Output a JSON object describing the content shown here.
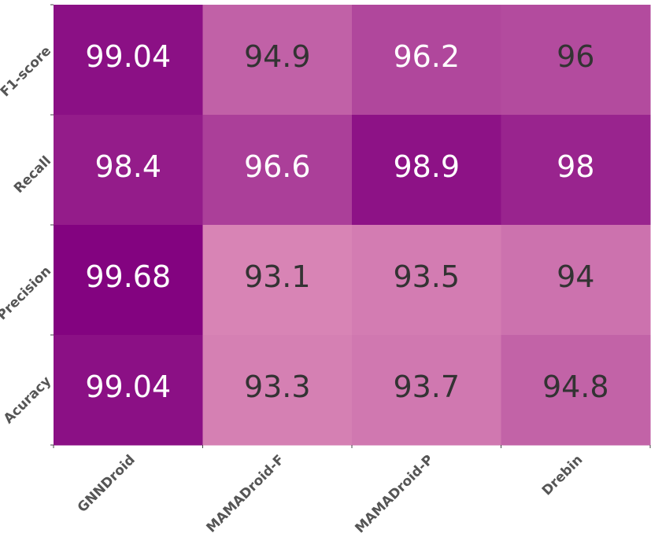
{
  "chart_data": {
    "type": "heatmap",
    "title": "",
    "xlabel": "",
    "ylabel": "",
    "x_categories": [
      "GNNDroid",
      "MAMADroid-F",
      "MAMADroid-P",
      "Drebin"
    ],
    "y_categories": [
      "F1-score",
      "Recall",
      "Precision",
      "Acuracy"
    ],
    "values": [
      [
        99.04,
        94.9,
        96.2,
        96
      ],
      [
        98.4,
        96.6,
        98.9,
        98
      ],
      [
        99.68,
        93.1,
        93.5,
        94
      ],
      [
        99.04,
        93.3,
        93.7,
        94.8
      ]
    ],
    "value_labels": [
      [
        "99.04",
        "94.9",
        "96.2",
        "96"
      ],
      [
        "98.4",
        "96.6",
        "98.9",
        "98"
      ],
      [
        "99.68",
        "93.1",
        "93.5",
        "94"
      ],
      [
        "99.04",
        "93.3",
        "93.7",
        "94.8"
      ]
    ],
    "colormap": {
      "low": "#d884b5",
      "high": "#830380"
    },
    "text_colors": {
      "dark": "#333333",
      "light": "#ffffff"
    },
    "colorbar": false,
    "grid": false
  }
}
